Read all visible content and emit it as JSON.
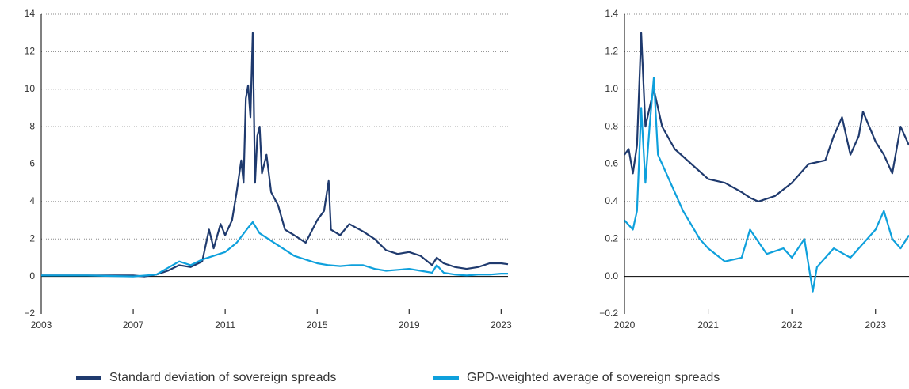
{
  "chart_data": [
    {
      "type": "line",
      "xlim": [
        2003,
        2023.3
      ],
      "xticks": [
        2003,
        2007,
        2011,
        2015,
        2019,
        2023
      ],
      "ylim": [
        -2,
        14
      ],
      "yticks": [
        {
          "value": -2,
          "label": "−2"
        },
        0,
        2,
        4,
        6,
        8,
        10,
        12,
        14
      ],
      "grid": true,
      "series": [
        {
          "name": "Standard deviation of sovereign spreads",
          "color": "#1f3a6e",
          "x": [
            2003,
            2004,
            2005,
            2006,
            2007,
            2007.5,
            2008,
            2008.5,
            2009,
            2009.5,
            2010,
            2010.3,
            2010.5,
            2010.8,
            2011,
            2011.3,
            2011.5,
            2011.7,
            2011.8,
            2011.9,
            2012.0,
            2012.1,
            2012.2,
            2012.3,
            2012.4,
            2012.5,
            2012.6,
            2012.8,
            2013.0,
            2013.3,
            2013.6,
            2014,
            2014.5,
            2015,
            2015.3,
            2015.5,
            2015.6,
            2016,
            2016.4,
            2017,
            2017.5,
            2018,
            2018.5,
            2019,
            2019.5,
            2020,
            2020.2,
            2020.5,
            2021,
            2021.5,
            2022,
            2022.5,
            2023,
            2023.3
          ],
          "values": [
            0.05,
            0.05,
            0.05,
            0.05,
            0.05,
            0.0,
            0.1,
            0.3,
            0.6,
            0.5,
            0.8,
            2.5,
            1.5,
            2.8,
            2.2,
            3.0,
            4.5,
            6.2,
            5.0,
            9.5,
            10.2,
            8.5,
            13.0,
            5.0,
            7.5,
            8.0,
            5.5,
            6.5,
            4.5,
            3.8,
            2.5,
            2.2,
            1.8,
            3.0,
            3.5,
            5.1,
            2.5,
            2.2,
            2.8,
            2.4,
            2.0,
            1.4,
            1.2,
            1.3,
            1.1,
            0.6,
            1.0,
            0.7,
            0.5,
            0.4,
            0.5,
            0.7,
            0.7,
            0.65
          ]
        },
        {
          "name": "GPD-weighted average of sovereign spreads",
          "color": "#0ea0dc",
          "x": [
            2003,
            2005,
            2007,
            2008,
            2009,
            2009.5,
            2010,
            2010.5,
            2011,
            2011.5,
            2012,
            2012.2,
            2012.5,
            2013,
            2013.5,
            2014,
            2014.5,
            2015,
            2015.5,
            2016,
            2016.5,
            2017,
            2017.5,
            2018,
            2018.5,
            2019,
            2019.5,
            2020,
            2020.2,
            2020.5,
            2021,
            2021.5,
            2022,
            2022.5,
            2023,
            2023.3
          ],
          "values": [
            0.05,
            0.05,
            0.0,
            0.1,
            0.8,
            0.6,
            0.9,
            1.1,
            1.3,
            1.8,
            2.6,
            2.9,
            2.3,
            1.9,
            1.5,
            1.1,
            0.9,
            0.7,
            0.6,
            0.55,
            0.6,
            0.6,
            0.4,
            0.3,
            0.35,
            0.4,
            0.3,
            0.2,
            0.6,
            0.2,
            0.1,
            0.05,
            0.1,
            0.1,
            0.15,
            0.15
          ]
        }
      ]
    },
    {
      "type": "line",
      "xlim": [
        2020,
        2023.4
      ],
      "xticks": [
        2020,
        2021,
        2022,
        2023
      ],
      "ylim": [
        -0.2,
        1.4
      ],
      "yticks": [
        {
          "value": -0.2,
          "label": "−0.2"
        },
        {
          "value": 0,
          "label": "0.0"
        },
        0.2,
        0.4,
        0.6,
        0.8,
        {
          "value": 1,
          "label": "1.0"
        },
        1.2,
        1.4
      ],
      "grid": true,
      "series": [
        {
          "color": "#1f3a6e",
          "x": [
            2020,
            2020.05,
            2020.1,
            2020.15,
            2020.2,
            2020.25,
            2020.3,
            2020.35,
            2020.45,
            2020.6,
            2020.8,
            2021,
            2021.2,
            2021.4,
            2021.5,
            2021.6,
            2021.8,
            2022,
            2022.2,
            2022.4,
            2022.5,
            2022.6,
            2022.7,
            2022.8,
            2022.85,
            2023,
            2023.1,
            2023.2,
            2023.3,
            2023.4
          ],
          "values": [
            0.65,
            0.68,
            0.55,
            0.7,
            1.3,
            0.8,
            0.9,
            1.0,
            0.8,
            0.68,
            0.6,
            0.52,
            0.5,
            0.45,
            0.42,
            0.4,
            0.43,
            0.5,
            0.6,
            0.62,
            0.75,
            0.85,
            0.65,
            0.75,
            0.88,
            0.72,
            0.65,
            0.55,
            0.8,
            0.7
          ]
        },
        {
          "color": "#0ea0dc",
          "x": [
            2020,
            2020.1,
            2020.15,
            2020.2,
            2020.25,
            2020.3,
            2020.35,
            2020.4,
            2020.5,
            2020.7,
            2020.9,
            2021,
            2021.2,
            2021.4,
            2021.5,
            2021.7,
            2021.9,
            2022,
            2022.15,
            2022.25,
            2022.3,
            2022.5,
            2022.7,
            2022.9,
            2023,
            2023.1,
            2023.2,
            2023.3,
            2023.4
          ],
          "values": [
            0.3,
            0.25,
            0.35,
            0.9,
            0.5,
            0.8,
            1.06,
            0.65,
            0.55,
            0.35,
            0.2,
            0.15,
            0.08,
            0.1,
            0.25,
            0.12,
            0.15,
            0.1,
            0.2,
            -0.08,
            0.05,
            0.15,
            0.1,
            0.2,
            0.25,
            0.35,
            0.2,
            0.15,
            0.22
          ]
        }
      ]
    }
  ]
}
